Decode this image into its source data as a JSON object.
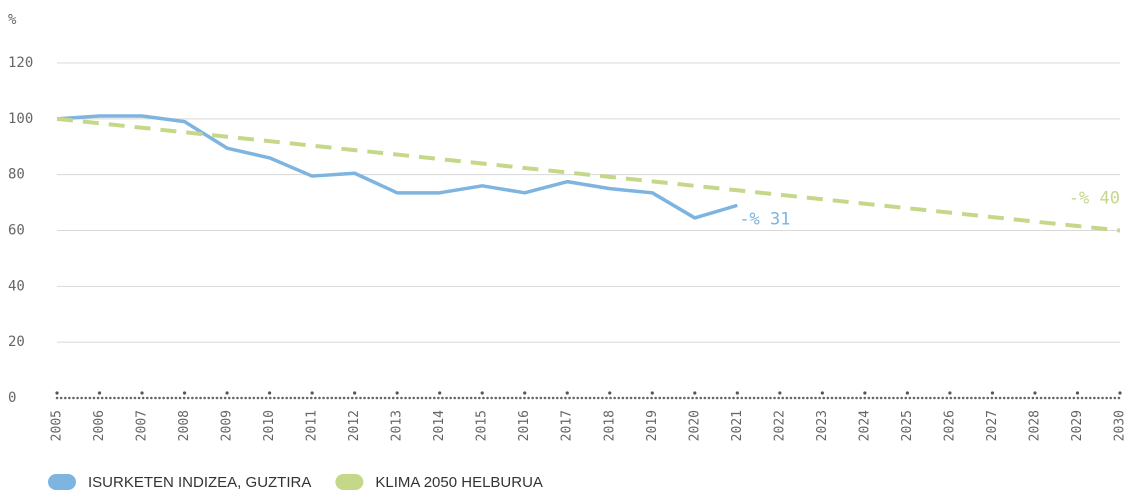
{
  "chart_data": {
    "type": "line",
    "y_label": "%",
    "x": [
      2005,
      2006,
      2007,
      2008,
      2009,
      2010,
      2011,
      2012,
      2013,
      2014,
      2015,
      2016,
      2017,
      2018,
      2019,
      2020,
      2021,
      2022,
      2023,
      2024,
      2025,
      2026,
      2027,
      2028,
      2029,
      2030
    ],
    "xlim": [
      2005,
      2030
    ],
    "ylim": [
      0,
      120
    ],
    "yticks": [
      0,
      20,
      40,
      60,
      80,
      100,
      120
    ],
    "grid": true,
    "legend": "bottom",
    "series": [
      {
        "name": "ISURKETEN INDIZEA, GUZTIRA",
        "color": "#7db4e0",
        "dashed": false,
        "values": [
          100,
          101,
          101,
          99,
          89.5,
          86,
          79.5,
          80.5,
          73.5,
          73.5,
          76,
          73.5,
          77.5,
          75,
          73.5,
          64.5,
          69,
          null,
          null,
          null,
          null,
          null,
          null,
          null,
          null,
          null
        ]
      },
      {
        "name": "KLIMA 2050 HELBURUA",
        "color": "#c5d88a",
        "dashed": true,
        "values": [
          100,
          98.4,
          96.8,
          95.2,
          93.6,
          92,
          90.4,
          88.8,
          87.2,
          85.6,
          84,
          82.4,
          80.8,
          79.2,
          77.6,
          76,
          74.4,
          72.8,
          71.2,
          69.6,
          68,
          66.4,
          64.8,
          63.2,
          61.6,
          60
        ]
      }
    ],
    "annotations": [
      {
        "text": "-% 31",
        "series": 0
      },
      {
        "text": "-% 40",
        "series": 1
      }
    ]
  }
}
